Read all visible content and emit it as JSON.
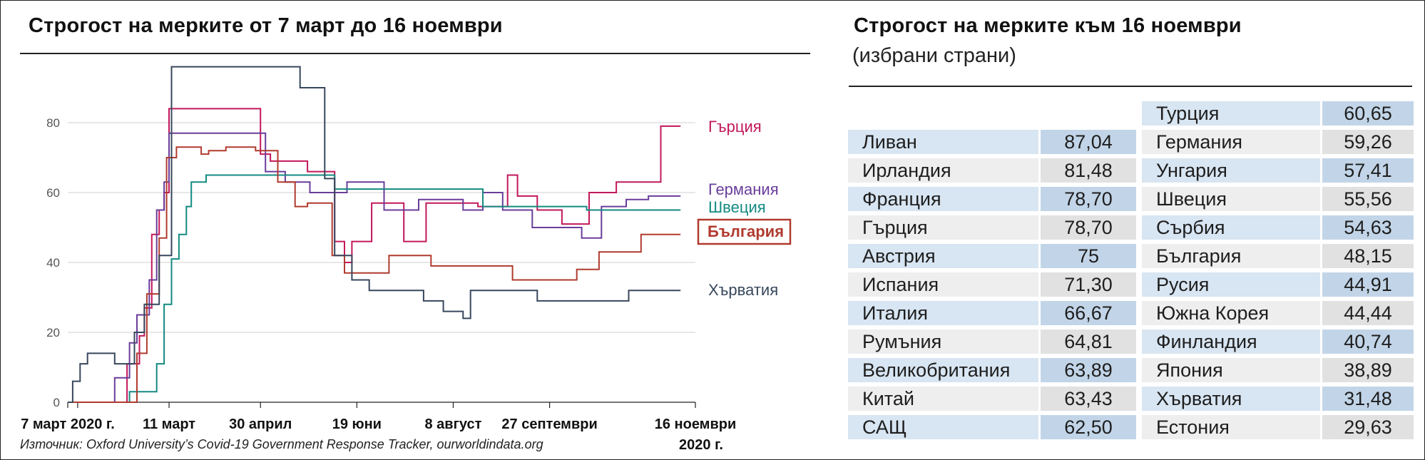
{
  "left_title": "Строгост на мерките от 7 март до 16 ноември",
  "right_title": "Строгост на мерките към 16 ноември",
  "right_subtitle": "(избрани страни)",
  "source": "Източник: Oxford University’s Covid-19 Government Response Tracker, ourworldindata.org",
  "colors": {
    "greece": "#c2185b",
    "germany": "#6a3d9a",
    "sweden": "#138a82",
    "bulgaria": "#b03a2e",
    "croatia": "#37475c",
    "grid": "#d0d0d0",
    "table_blue_name": "#d8e5f2",
    "table_blue_value": "#c2d5e8",
    "table_gray_name": "#eeeeee",
    "table_gray_value": "#e1e1e1"
  },
  "chart_data": {
    "type": "line",
    "xlabel": "",
    "ylabel": "",
    "xlim": [
      0,
      254
    ],
    "ylim": [
      0,
      100
    ],
    "y_ticks": [
      0,
      20,
      40,
      60,
      80
    ],
    "x_ticks": [
      {
        "day": 0,
        "label": "7 март 2020 г."
      },
      {
        "day": 4,
        "label": ""
      },
      {
        "day": 41,
        "label": "11 март"
      },
      {
        "day": 78,
        "label": "30 април"
      },
      {
        "day": 117,
        "label": "19 юни"
      },
      {
        "day": 156,
        "label": "8 август"
      },
      {
        "day": 195,
        "label": "27 септември"
      },
      {
        "day": 254,
        "label": "16 ноември",
        "label2": "2020 г."
      }
    ],
    "grid": "horizontal",
    "legend": "line-end labels",
    "series": [
      {
        "name": "Гърция",
        "color_key": "greece",
        "boxed": false,
        "points": [
          [
            0,
            0
          ],
          [
            24,
            0
          ],
          [
            24,
            11
          ],
          [
            29,
            11
          ],
          [
            29,
            19
          ],
          [
            31,
            19
          ],
          [
            31,
            27
          ],
          [
            34,
            27
          ],
          [
            34,
            48
          ],
          [
            37,
            48
          ],
          [
            37,
            55
          ],
          [
            39,
            55
          ],
          [
            39,
            60
          ],
          [
            41,
            60
          ],
          [
            41,
            84
          ],
          [
            74,
            84
          ],
          [
            74,
            84
          ],
          [
            78,
            84
          ],
          [
            78,
            71
          ],
          [
            82,
            71
          ],
          [
            82,
            69
          ],
          [
            97,
            69
          ],
          [
            97,
            66
          ],
          [
            108,
            66
          ],
          [
            108,
            46
          ],
          [
            112,
            46
          ],
          [
            112,
            40
          ],
          [
            115,
            40
          ],
          [
            115,
            46
          ],
          [
            123,
            46
          ],
          [
            123,
            57
          ],
          [
            136,
            57
          ],
          [
            136,
            46
          ],
          [
            145,
            46
          ],
          [
            145,
            57
          ],
          [
            166,
            57
          ],
          [
            166,
            56
          ],
          [
            178,
            56
          ],
          [
            178,
            65
          ],
          [
            182,
            65
          ],
          [
            182,
            59
          ],
          [
            190,
            59
          ],
          [
            190,
            55
          ],
          [
            200,
            55
          ],
          [
            200,
            51
          ],
          [
            211,
            51
          ],
          [
            211,
            60
          ],
          [
            222,
            60
          ],
          [
            222,
            63
          ],
          [
            240,
            63
          ],
          [
            240,
            79
          ],
          [
            248,
            79
          ]
        ]
      },
      {
        "name": "Германия",
        "color_key": "germany",
        "boxed": false,
        "points": [
          [
            0,
            0
          ],
          [
            19,
            0
          ],
          [
            19,
            7
          ],
          [
            25,
            7
          ],
          [
            25,
            17
          ],
          [
            28,
            17
          ],
          [
            28,
            25
          ],
          [
            33,
            25
          ],
          [
            33,
            35
          ],
          [
            36,
            35
          ],
          [
            36,
            55
          ],
          [
            39,
            55
          ],
          [
            39,
            63
          ],
          [
            41,
            63
          ],
          [
            41,
            77
          ],
          [
            75,
            77
          ],
          [
            75,
            77
          ],
          [
            80,
            77
          ],
          [
            80,
            66
          ],
          [
            88,
            66
          ],
          [
            88,
            63
          ],
          [
            98,
            63
          ],
          [
            98,
            60
          ],
          [
            113,
            60
          ],
          [
            113,
            63
          ],
          [
            128,
            63
          ],
          [
            128,
            55
          ],
          [
            142,
            55
          ],
          [
            142,
            58
          ],
          [
            160,
            58
          ],
          [
            160,
            55
          ],
          [
            168,
            55
          ],
          [
            168,
            60
          ],
          [
            176,
            60
          ],
          [
            176,
            55
          ],
          [
            188,
            55
          ],
          [
            188,
            50
          ],
          [
            208,
            50
          ],
          [
            208,
            47
          ],
          [
            216,
            47
          ],
          [
            216,
            56
          ],
          [
            226,
            56
          ],
          [
            226,
            58
          ],
          [
            235,
            58
          ],
          [
            235,
            59
          ],
          [
            248,
            59
          ]
        ]
      },
      {
        "name": "Швеция",
        "color_key": "sweden",
        "boxed": false,
        "points": [
          [
            0,
            0
          ],
          [
            25,
            0
          ],
          [
            25,
            3
          ],
          [
            36,
            3
          ],
          [
            36,
            11
          ],
          [
            39,
            11
          ],
          [
            39,
            28
          ],
          [
            42,
            28
          ],
          [
            42,
            41
          ],
          [
            45,
            41
          ],
          [
            45,
            48
          ],
          [
            48,
            48
          ],
          [
            48,
            56
          ],
          [
            50,
            56
          ],
          [
            50,
            63
          ],
          [
            56,
            63
          ],
          [
            56,
            65
          ],
          [
            108,
            65
          ],
          [
            108,
            61
          ],
          [
            168,
            61
          ],
          [
            168,
            56
          ],
          [
            210,
            56
          ],
          [
            210,
            55
          ],
          [
            248,
            55
          ]
        ]
      },
      {
        "name": "България",
        "color_key": "bulgaria",
        "boxed": true,
        "points": [
          [
            0,
            0
          ],
          [
            28,
            0
          ],
          [
            28,
            14
          ],
          [
            32,
            14
          ],
          [
            32,
            31
          ],
          [
            37,
            31
          ],
          [
            37,
            47
          ],
          [
            40,
            47
          ],
          [
            40,
            70
          ],
          [
            44,
            70
          ],
          [
            44,
            73
          ],
          [
            54,
            73
          ],
          [
            54,
            71
          ],
          [
            57,
            71
          ],
          [
            57,
            72
          ],
          [
            64,
            72
          ],
          [
            64,
            73
          ],
          [
            76,
            73
          ],
          [
            76,
            72
          ],
          [
            85,
            72
          ],
          [
            85,
            63
          ],
          [
            92,
            63
          ],
          [
            92,
            56
          ],
          [
            97,
            56
          ],
          [
            97,
            57
          ],
          [
            107,
            57
          ],
          [
            107,
            42
          ],
          [
            112,
            42
          ],
          [
            112,
            37
          ],
          [
            130,
            37
          ],
          [
            130,
            42
          ],
          [
            147,
            42
          ],
          [
            147,
            39
          ],
          [
            180,
            39
          ],
          [
            180,
            35
          ],
          [
            206,
            35
          ],
          [
            206,
            38
          ],
          [
            215,
            38
          ],
          [
            215,
            43
          ],
          [
            232,
            43
          ],
          [
            232,
            48
          ],
          [
            248,
            48
          ]
        ]
      },
      {
        "name": "Хърватия",
        "color_key": "croatia",
        "boxed": false,
        "points": [
          [
            0,
            0
          ],
          [
            2,
            0
          ],
          [
            2,
            6
          ],
          [
            5,
            6
          ],
          [
            5,
            11
          ],
          [
            8,
            11
          ],
          [
            8,
            14
          ],
          [
            19,
            14
          ],
          [
            19,
            11
          ],
          [
            27,
            11
          ],
          [
            27,
            20
          ],
          [
            31,
            20
          ],
          [
            31,
            28
          ],
          [
            37,
            28
          ],
          [
            37,
            42
          ],
          [
            42,
            42
          ],
          [
            42,
            96
          ],
          [
            94,
            96
          ],
          [
            94,
            90
          ],
          [
            104,
            90
          ],
          [
            104,
            64
          ],
          [
            108,
            64
          ],
          [
            108,
            42
          ],
          [
            115,
            42
          ],
          [
            115,
            35
          ],
          [
            122,
            35
          ],
          [
            122,
            32
          ],
          [
            144,
            32
          ],
          [
            144,
            29
          ],
          [
            152,
            29
          ],
          [
            152,
            26
          ],
          [
            160,
            26
          ],
          [
            160,
            24
          ],
          [
            163,
            24
          ],
          [
            163,
            32
          ],
          [
            190,
            32
          ],
          [
            190,
            29
          ],
          [
            227,
            29
          ],
          [
            227,
            32
          ],
          [
            248,
            32
          ]
        ]
      }
    ]
  },
  "table": {
    "left": [
      {
        "country": "Ливан",
        "value": "87,04"
      },
      {
        "country": "Ирландия",
        "value": "81,48"
      },
      {
        "country": "Франция",
        "value": "78,70"
      },
      {
        "country": "Гърция",
        "value": "78,70"
      },
      {
        "country": "Австрия",
        "value": "75"
      },
      {
        "country": "Испания",
        "value": "71,30"
      },
      {
        "country": "Италия",
        "value": "66,67"
      },
      {
        "country": "Румъния",
        "value": "64,81"
      },
      {
        "country": "Великобритания",
        "value": "63,89"
      },
      {
        "country": "Китай",
        "value": "63,43"
      },
      {
        "country": "САЩ",
        "value": "62,50"
      }
    ],
    "right": [
      {
        "country": "Турция",
        "value": "60,65"
      },
      {
        "country": "Германия",
        "value": "59,26"
      },
      {
        "country": "Унгария",
        "value": "57,41"
      },
      {
        "country": "Швеция",
        "value": "55,56"
      },
      {
        "country": "Сърбия",
        "value": "54,63"
      },
      {
        "country": "България",
        "value": "48,15"
      },
      {
        "country": "Русия",
        "value": "44,91"
      },
      {
        "country": "Южна Корея",
        "value": "44,44"
      },
      {
        "country": "Финландия",
        "value": "40,74"
      },
      {
        "country": "Япония",
        "value": "38,89"
      },
      {
        "country": "Хърватия",
        "value": "31,48"
      },
      {
        "country": "Естония",
        "value": "29,63"
      }
    ]
  }
}
